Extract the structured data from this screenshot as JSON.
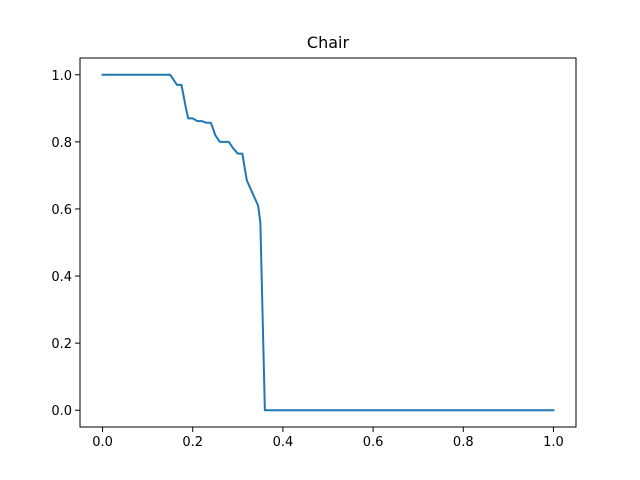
{
  "chart_data": {
    "type": "line",
    "title": "Chair",
    "xlabel": "",
    "ylabel": "",
    "xlim": [
      -0.05,
      1.05
    ],
    "ylim": [
      -0.05,
      1.05
    ],
    "xticks": [
      0.0,
      0.2,
      0.4,
      0.6,
      0.8,
      1.0
    ],
    "xtick_labels": [
      "0.0",
      "0.2",
      "0.4",
      "0.6",
      "0.8",
      "1.0"
    ],
    "yticks": [
      0.0,
      0.2,
      0.4,
      0.6,
      0.8,
      1.0
    ],
    "ytick_labels": [
      "0.0",
      "0.2",
      "0.4",
      "0.6",
      "0.8",
      "1.0"
    ],
    "grid": false,
    "legend": "none",
    "series": [
      {
        "color": "#1f77b4",
        "x": [
          0.0,
          0.15,
          0.165,
          0.175,
          0.185,
          0.19,
          0.2,
          0.21,
          0.22,
          0.23,
          0.24,
          0.245,
          0.25,
          0.26,
          0.28,
          0.29,
          0.3,
          0.31,
          0.32,
          0.335,
          0.345,
          0.35,
          0.36,
          0.37,
          0.4,
          0.6,
          0.8,
          1.0
        ],
        "y": [
          1.0,
          1.0,
          0.97,
          0.97,
          0.9,
          0.87,
          0.87,
          0.862,
          0.862,
          0.857,
          0.857,
          0.84,
          0.82,
          0.8,
          0.8,
          0.78,
          0.765,
          0.765,
          0.685,
          0.64,
          0.61,
          0.56,
          0.0,
          0.0,
          0.0,
          0.0,
          0.0,
          0.0
        ]
      }
    ]
  }
}
